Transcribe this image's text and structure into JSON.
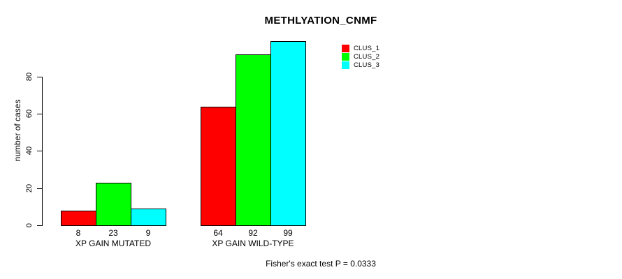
{
  "chart_data": {
    "type": "bar",
    "title": "METHLYATION_CNMF",
    "ylabel": "number of cases",
    "xlabel": "",
    "categories": [
      "XP GAIN MUTATED",
      "XP GAIN WILD-TYPE"
    ],
    "series": [
      {
        "name": "CLUS_1",
        "color": "#ff0000",
        "values": [
          8,
          64
        ]
      },
      {
        "name": "CLUS_2",
        "color": "#00ff00",
        "values": [
          23,
          92
        ]
      },
      {
        "name": "CLUS_3",
        "color": "#00ffff",
        "values": [
          9,
          99
        ]
      }
    ],
    "y_ticks": [
      0,
      20,
      40,
      60,
      80
    ],
    "ylim": [
      0,
      100
    ],
    "grid": false,
    "legend_position": "right",
    "bar_value_labels_shown": true,
    "annotation": "Fisher's exact test P = 0.0333"
  }
}
